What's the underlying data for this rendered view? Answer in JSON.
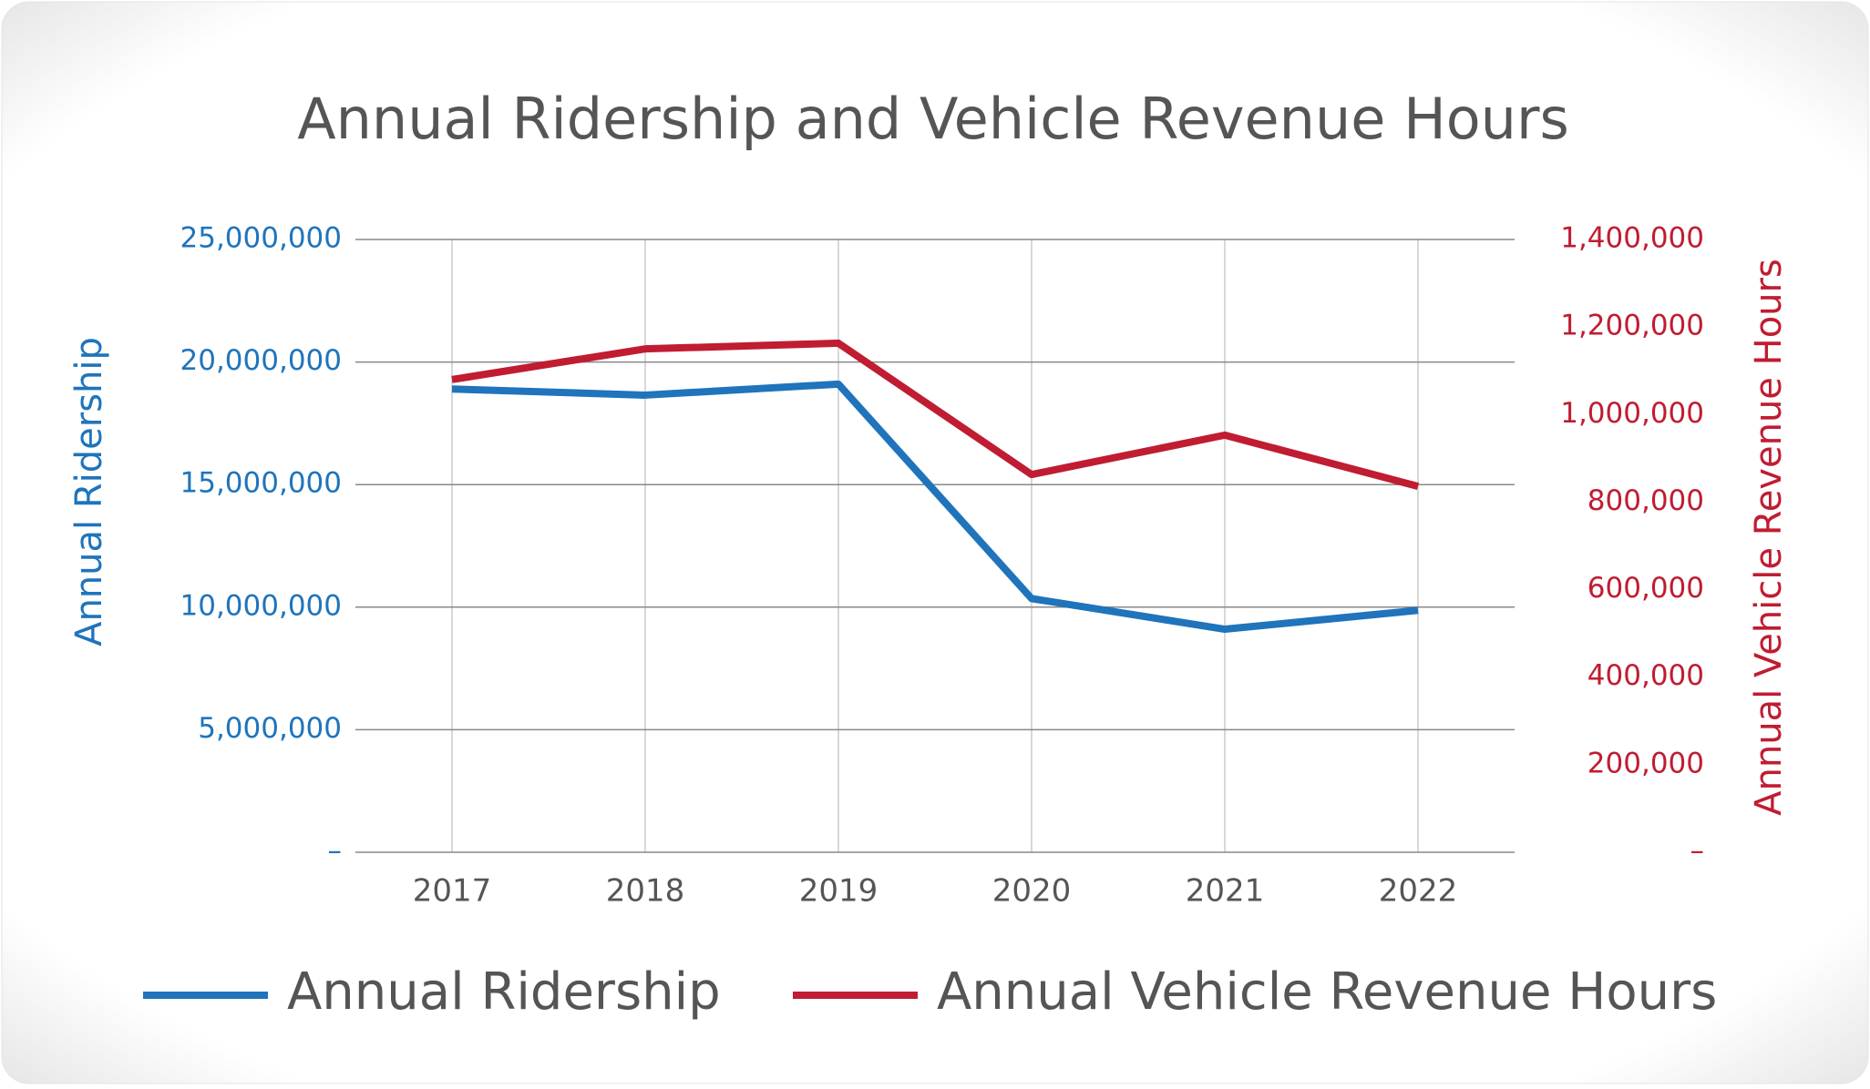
{
  "chart_data": {
    "type": "line",
    "title": "Annual Ridership and Vehicle Revenue Hours",
    "categories": [
      "2017",
      "2018",
      "2019",
      "2020",
      "2021",
      "2022"
    ],
    "y_label": "Annual Ridership",
    "y2_label": "Annual Vehicle Revenue Hours",
    "ylim": [
      0,
      25000000
    ],
    "yticks": [
      {
        "value": 0,
        "label": "–"
      },
      {
        "value": 5000000,
        "label": "5,000,000"
      },
      {
        "value": 10000000,
        "label": "10,000,000"
      },
      {
        "value": 15000000,
        "label": "15,000,000"
      },
      {
        "value": 20000000,
        "label": "20,000,000"
      },
      {
        "value": 25000000,
        "label": "25,000,000"
      }
    ],
    "y2lim": [
      0,
      1400000
    ],
    "y2ticks": [
      {
        "value": 0,
        "label": "–"
      },
      {
        "value": 200000,
        "label": "200,000"
      },
      {
        "value": 400000,
        "label": "400,000"
      },
      {
        "value": 600000,
        "label": "600,000"
      },
      {
        "value": 800000,
        "label": "800,000"
      },
      {
        "value": 1000000,
        "label": "1,000,000"
      },
      {
        "value": 1200000,
        "label": "1,200,000"
      },
      {
        "value": 1400000,
        "label": "1,400,000"
      }
    ],
    "grid": true,
    "legend": "bottom",
    "series": [
      {
        "name": "Annual Ridership",
        "color": "#1f74bb",
        "values": [
          18900000,
          18650000,
          19100000,
          10350000,
          9100000,
          9870000
        ]
      },
      {
        "name": "Annual Vehicle Revenue Hours",
        "color": "#c01c32",
        "axis": "y2",
        "values": [
          1080000,
          1150000,
          1163000,
          863000,
          953000,
          836000
        ]
      }
    ]
  }
}
